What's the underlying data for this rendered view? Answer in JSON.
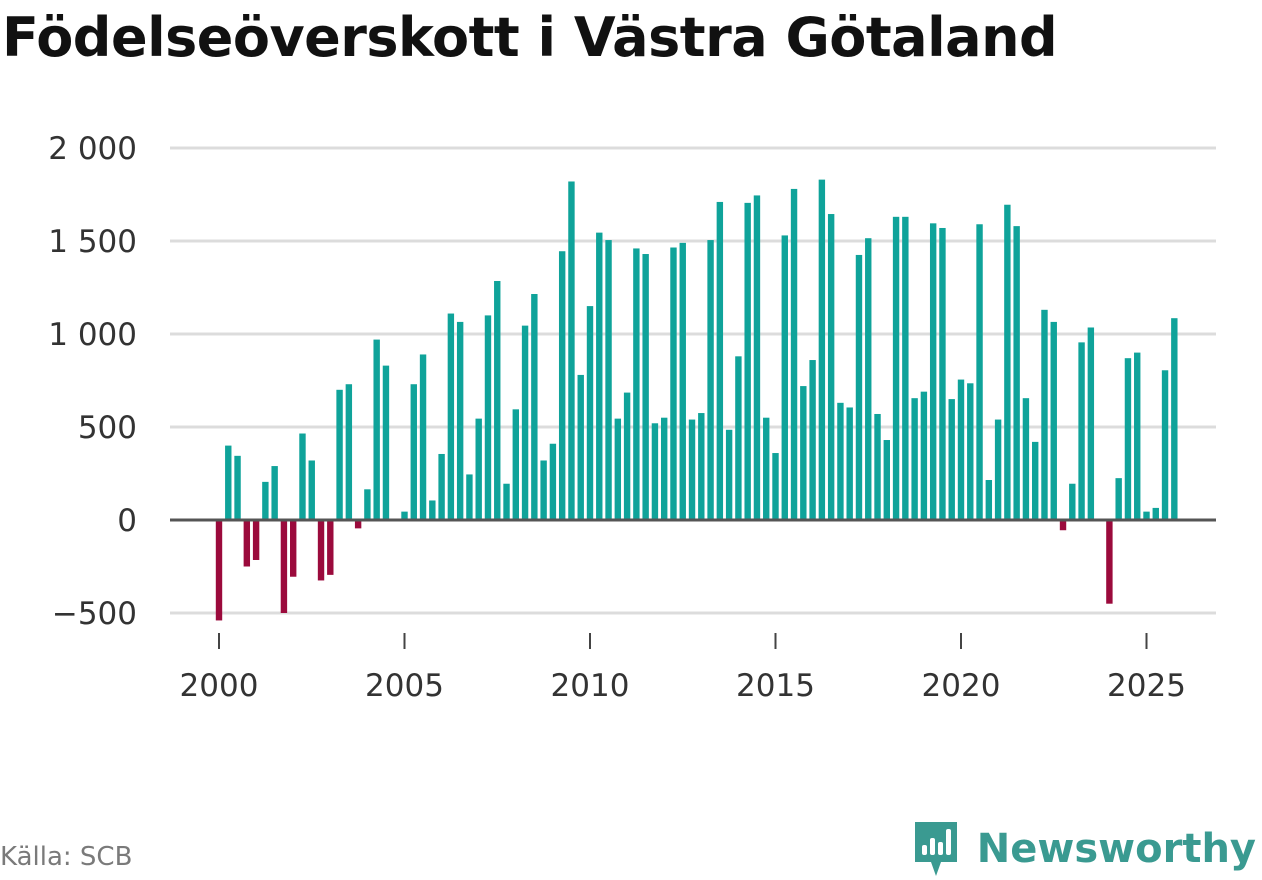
{
  "title": "Födelseöverskott i Västra Götaland",
  "source": "Källa: SCB",
  "brand": {
    "name": "Newsworthy",
    "icon": "newsworthy-logo-icon"
  },
  "colors": {
    "positive": "#0fa39a",
    "negative": "#9b0a3c",
    "grid": "#dcdcdc",
    "zero_line": "#555555"
  },
  "chart_data": {
    "type": "bar",
    "xlabel": "",
    "ylabel": "",
    "ylim": [
      -500,
      2000
    ],
    "yticks": [
      {
        "value": -500,
        "label": "−500"
      },
      {
        "value": 0,
        "label": "0"
      },
      {
        "value": 500,
        "label": "500"
      },
      {
        "value": 1000,
        "label": "1 000"
      },
      {
        "value": 1500,
        "label": "1 500"
      },
      {
        "value": 2000,
        "label": "2 000"
      }
    ],
    "xticks": [
      {
        "year": 2000,
        "label": "2000"
      },
      {
        "year": 2005,
        "label": "2005"
      },
      {
        "year": 2010,
        "label": "2010"
      },
      {
        "year": 2015,
        "label": "2015"
      },
      {
        "year": 2020,
        "label": "2020"
      },
      {
        "year": 2025,
        "label": "2025"
      }
    ],
    "start_year": 2000,
    "periods_per_year": 4,
    "values": [
      -540,
      400,
      345,
      -250,
      -215,
      205,
      290,
      -500,
      -305,
      465,
      320,
      -325,
      -295,
      700,
      730,
      -45,
      165,
      970,
      830,
      0,
      45,
      730,
      890,
      105,
      355,
      1110,
      1065,
      245,
      545,
      1100,
      1285,
      195,
      595,
      1045,
      1215,
      320,
      410,
      1445,
      1820,
      780,
      1150,
      1545,
      1505,
      545,
      685,
      1460,
      1430,
      520,
      550,
      1465,
      1490,
      540,
      575,
      1505,
      1710,
      485,
      880,
      1705,
      1745,
      550,
      360,
      1530,
      1780,
      720,
      860,
      1830,
      1645,
      630,
      605,
      1425,
      1515,
      570,
      430,
      1630,
      1630,
      655,
      690,
      1595,
      1570,
      650,
      755,
      735,
      1590,
      215,
      540,
      1695,
      1580,
      655,
      420,
      1130,
      1065,
      -55,
      195,
      955,
      1035,
      0,
      -450,
      225,
      870,
      900,
      45,
      65,
      805,
      1085
    ]
  }
}
